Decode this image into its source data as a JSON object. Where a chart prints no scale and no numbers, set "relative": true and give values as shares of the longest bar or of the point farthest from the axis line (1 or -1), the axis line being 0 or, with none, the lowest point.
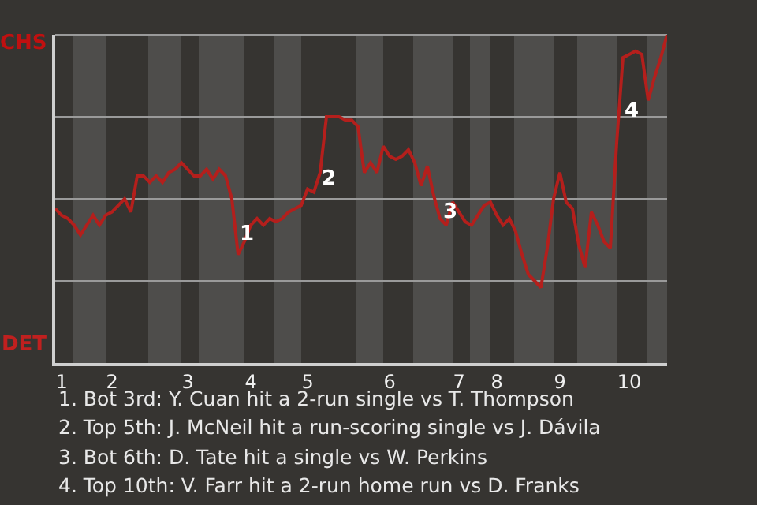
{
  "chart_data": {
    "type": "line",
    "relative": true,
    "categories": [
      null,
      "1",
      null,
      null,
      null,
      null,
      null,
      null,
      null,
      "2",
      null,
      null,
      null,
      null,
      null,
      null,
      null,
      null,
      null,
      null,
      null,
      "3",
      null,
      null,
      null,
      null,
      null,
      null,
      null,
      null,
      null,
      "4",
      null,
      null,
      null,
      null,
      null,
      null,
      null,
      null,
      "5",
      null,
      null,
      null,
      null,
      null,
      null,
      null,
      null,
      null,
      null,
      null,
      null,
      "6",
      null,
      null,
      null,
      null,
      null,
      null,
      null,
      null,
      null,
      null,
      "7",
      null,
      null,
      null,
      null,
      null,
      "8",
      null,
      null,
      null,
      null,
      null,
      null,
      null,
      null,
      null,
      "9",
      null,
      null,
      null,
      null,
      null,
      null,
      null,
      null,
      null,
      null,
      "10",
      null,
      null,
      null,
      null,
      null,
      null
    ],
    "series": [
      {
        "color": "#b41f1c",
        "values": [
          0.47,
          0.45,
          0.44,
          0.42,
          0.39,
          0.42,
          0.45,
          0.42,
          0.45,
          0.46,
          0.48,
          0.5,
          0.46,
          0.57,
          0.57,
          0.55,
          0.57,
          0.55,
          0.58,
          0.59,
          0.61,
          0.59,
          0.57,
          0.57,
          0.59,
          0.56,
          0.59,
          0.57,
          0.5,
          0.33,
          0.37,
          0.42,
          0.44,
          0.42,
          0.44,
          0.43,
          0.44,
          0.46,
          0.47,
          0.48,
          0.53,
          0.52,
          0.58,
          0.75,
          0.75,
          0.75,
          0.74,
          0.74,
          0.72,
          0.58,
          0.61,
          0.58,
          0.66,
          0.63,
          0.62,
          0.63,
          0.65,
          0.61,
          0.54,
          0.6,
          0.51,
          0.44,
          0.42,
          0.49,
          0.46,
          0.43,
          0.42,
          0.45,
          0.48,
          0.49,
          0.45,
          0.42,
          0.44,
          0.4,
          0.33,
          0.27,
          0.25,
          0.23,
          0.35,
          0.5,
          0.58,
          0.49,
          0.47,
          0.36,
          0.29,
          0.46,
          0.42,
          0.37,
          0.35,
          0.67,
          0.93,
          0.94,
          0.95,
          0.94,
          0.8,
          0.87,
          0.93,
          1.0
        ]
      }
    ],
    "grid": "y",
    "marker": "none",
    "line_style": "solid",
    "annotations": [
      "CHS",
      "DET",
      "1",
      "2",
      "3",
      "4",
      "1. Bot 3rd: Y. Cuan hit a 2-run single vs T. Thompson",
      "2. Top 5th: J. McNeil hit a run-scoring single vs J. Dávila",
      "3. Bot 6th: D. Tate hit a single vs W. Perkins",
      "4. Top 10th: V. Farr hit a 2-run home run vs D. Franks"
    ]
  }
}
